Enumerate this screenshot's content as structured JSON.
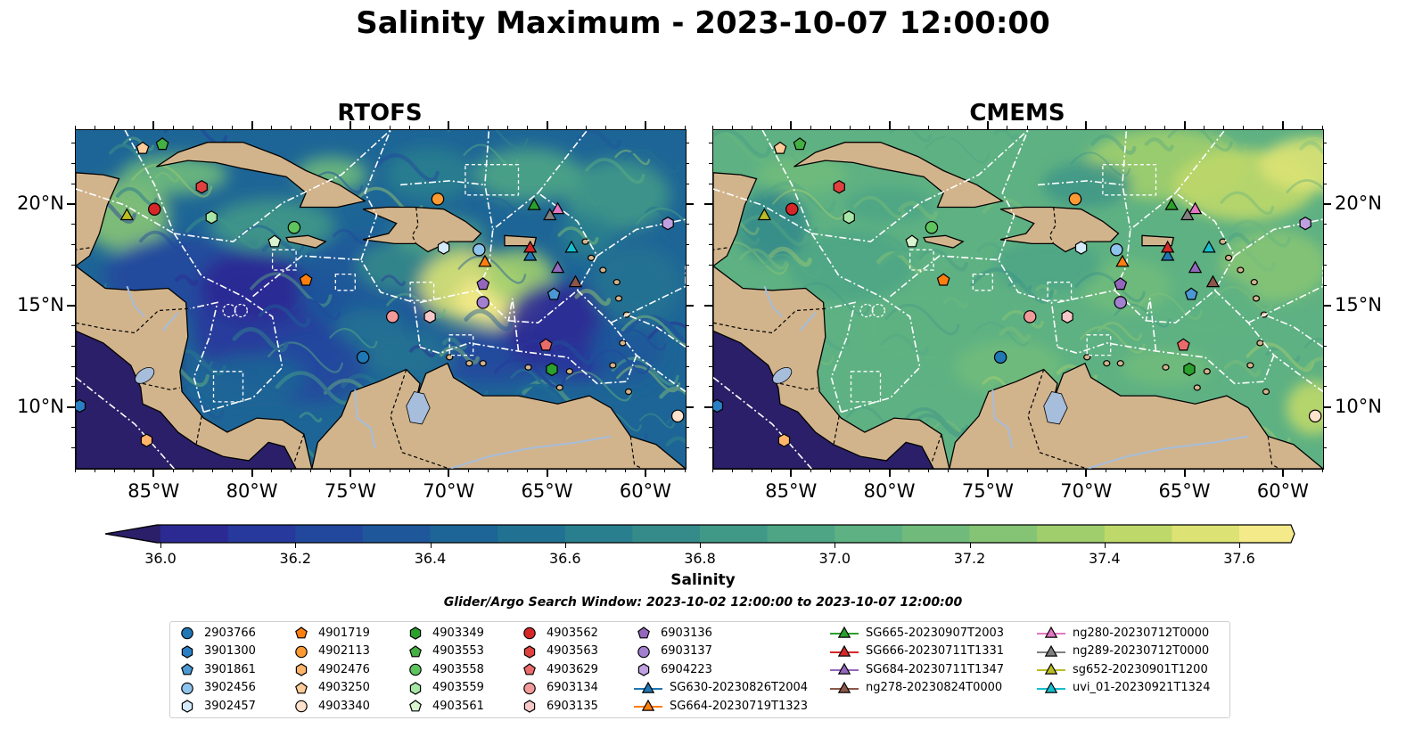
{
  "title": "Salinity Maximum - 2023-10-07 12:00:00",
  "panels": [
    {
      "title": "RTOFS",
      "style": "rtofs"
    },
    {
      "title": "CMEMS",
      "style": "cmems"
    }
  ],
  "lon_ticks": [
    "85°W",
    "80°W",
    "75°W",
    "70°W",
    "65°W",
    "60°W"
  ],
  "lat_ticks": [
    "20°N",
    "15°N",
    "10°N"
  ],
  "map_extent": {
    "lon_min": -89,
    "lon_max": -58,
    "lat_min": 7,
    "lat_max": 23.7
  },
  "colorbar": {
    "label": "Salinity",
    "ticks": [
      "36.0",
      "36.2",
      "36.4",
      "36.6",
      "36.8",
      "37.0",
      "37.2",
      "37.4",
      "37.6"
    ],
    "min": 36.0,
    "max": 37.6,
    "step": 0.1,
    "colors": [
      "#2a1f68",
      "#2b2a93",
      "#27399c",
      "#22489d",
      "#1e579a",
      "#1d6596",
      "#217292",
      "#2a7f8e",
      "#348b8a",
      "#409887",
      "#4ea585",
      "#5eb182",
      "#70bb7c",
      "#86c475",
      "#a0ce6d",
      "#bed86a",
      "#dce374",
      "#f4ea8a"
    ]
  },
  "land_color": "#d2b48c",
  "water_color": "#a6bddb",
  "search_window": "Glider/Argo Search Window: 2023-10-02 12:00:00 to 2023-10-07 12:00:00",
  "legend": {
    "columns": [
      [
        {
          "label": "2903766",
          "marker": "circle",
          "color": "#1f77b4"
        },
        {
          "label": "3901300",
          "marker": "hexagon",
          "color": "#2a7fc4"
        },
        {
          "label": "3901861",
          "marker": "pentagon",
          "color": "#4b98d4"
        },
        {
          "label": "3902456",
          "marker": "circle",
          "color": "#8ec3ec"
        },
        {
          "label": "3902457",
          "marker": "hexagon",
          "color": "#d6ebfa"
        }
      ],
      [
        {
          "label": "4901719",
          "marker": "pentagon",
          "color": "#ff7f0e"
        },
        {
          "label": "4902113",
          "marker": "circle",
          "color": "#ff9a33"
        },
        {
          "label": "4902476",
          "marker": "hexagon",
          "color": "#ffb46a"
        },
        {
          "label": "4903250",
          "marker": "pentagon",
          "color": "#ffcc99"
        },
        {
          "label": "4903340",
          "marker": "circle",
          "color": "#ffe3cc"
        }
      ],
      [
        {
          "label": "4903349",
          "marker": "hexagon",
          "color": "#2ca02c"
        },
        {
          "label": "4903553",
          "marker": "pentagon",
          "color": "#44b044"
        },
        {
          "label": "4903558",
          "marker": "circle",
          "color": "#5ec45e"
        },
        {
          "label": "4903559",
          "marker": "hexagon",
          "color": "#a8e6a8"
        },
        {
          "label": "4903561",
          "marker": "pentagon",
          "color": "#d8f5d0"
        }
      ],
      [
        {
          "label": "4903562",
          "marker": "circle",
          "color": "#d62728"
        },
        {
          "label": "4903563",
          "marker": "hexagon",
          "color": "#e0413f"
        },
        {
          "label": "4903629",
          "marker": "pentagon",
          "color": "#eb6b6b"
        },
        {
          "label": "6903134",
          "marker": "circle",
          "color": "#f29a9a"
        },
        {
          "label": "6903135",
          "marker": "hexagon",
          "color": "#f8c8c8"
        }
      ],
      [
        {
          "label": "6903136",
          "marker": "pentagon",
          "color": "#9467bd"
        },
        {
          "label": "6903137",
          "marker": "circle",
          "color": "#a37fd0"
        },
        {
          "label": "6904223",
          "marker": "hexagon",
          "color": "#bfa0e0"
        },
        {
          "label": "SG630-20230826T2004",
          "marker": "triangle-line",
          "color": "#1f77b4"
        },
        {
          "label": "SG664-20230719T1323",
          "marker": "triangle-line",
          "color": "#ff7f0e"
        }
      ],
      [
        {
          "label": "SG665-20230907T2003",
          "marker": "triangle-line",
          "color": "#2ca02c"
        },
        {
          "label": "SG666-20230711T1331",
          "marker": "triangle-line",
          "color": "#d62728"
        },
        {
          "label": "SG684-20230711T1347",
          "marker": "triangle-line",
          "color": "#9467bd"
        },
        {
          "label": "ng278-20230824T0000",
          "marker": "triangle-line",
          "color": "#8c564b"
        }
      ],
      [
        {
          "label": "ng280-20230712T0000",
          "marker": "triangle-line",
          "color": "#e377c2"
        },
        {
          "label": "ng289-20230712T0000",
          "marker": "triangle-line",
          "color": "#7f7f7f"
        },
        {
          "label": "sg652-20230901T1200",
          "marker": "triangle-line",
          "color": "#bcbd22"
        },
        {
          "label": "uvi_01-20230921T1324",
          "marker": "triangle-line",
          "color": "#17becf"
        }
      ]
    ]
  },
  "observations": [
    {
      "label": "2903766",
      "lon": -74.4,
      "lat": 12.5
    },
    {
      "label": "3901300",
      "lon": -88.8,
      "lat": 10.1
    },
    {
      "label": "3901861",
      "lon": -64.7,
      "lat": 15.6
    },
    {
      "label": "3902456",
      "lon": -68.5,
      "lat": 17.8
    },
    {
      "label": "3902457",
      "lon": -70.3,
      "lat": 17.9
    },
    {
      "label": "4901719",
      "lon": -77.3,
      "lat": 16.3
    },
    {
      "label": "4902113",
      "lon": -70.6,
      "lat": 20.3
    },
    {
      "label": "4902476",
      "lon": -85.4,
      "lat": 8.4
    },
    {
      "label": "4903250",
      "lon": -85.6,
      "lat": 22.8
    },
    {
      "label": "4903340",
      "lon": -58.4,
      "lat": 9.6
    },
    {
      "label": "4903349",
      "lon": -64.8,
      "lat": 11.9
    },
    {
      "label": "4903553",
      "lon": -84.6,
      "lat": 23.0
    },
    {
      "label": "4903558",
      "lon": -77.9,
      "lat": 18.9
    },
    {
      "label": "4903559",
      "lon": -82.1,
      "lat": 19.4
    },
    {
      "label": "4903561",
      "lon": -78.9,
      "lat": 18.2
    },
    {
      "label": "4903562",
      "lon": -85.0,
      "lat": 19.8
    },
    {
      "label": "4903563",
      "lon": -82.6,
      "lat": 20.9
    },
    {
      "label": "4903629",
      "lon": -65.1,
      "lat": 13.1
    },
    {
      "label": "6903134",
      "lon": -72.9,
      "lat": 14.5
    },
    {
      "label": "6903135",
      "lon": -71.0,
      "lat": 14.5
    },
    {
      "label": "6903136",
      "lon": -68.3,
      "lat": 16.1
    },
    {
      "label": "6903137",
      "lon": -68.3,
      "lat": 15.2
    },
    {
      "label": "6904223",
      "lon": -58.9,
      "lat": 19.1
    },
    {
      "label": "SG630-20230826T2004",
      "lon": -65.9,
      "lat": 17.5
    },
    {
      "label": "SG664-20230719T1323",
      "lon": -68.2,
      "lat": 17.2
    },
    {
      "label": "SG665-20230907T2003",
      "lon": -65.7,
      "lat": 20.0
    },
    {
      "label": "SG666-20230711T1331",
      "lon": -65.9,
      "lat": 17.9
    },
    {
      "label": "SG684-20230711T1347",
      "lon": -64.5,
      "lat": 16.9
    },
    {
      "label": "ng278-20230824T0000",
      "lon": -63.6,
      "lat": 16.2
    },
    {
      "label": "ng280-20230712T0000",
      "lon": -64.5,
      "lat": 19.8
    },
    {
      "label": "ng289-20230712T0000",
      "lon": -64.9,
      "lat": 19.5
    },
    {
      "label": "sg652-20230901T1200",
      "lon": -86.4,
      "lat": 19.5
    },
    {
      "label": "uvi_01-20230921T1324",
      "lon": -63.8,
      "lat": 17.9
    }
  ]
}
